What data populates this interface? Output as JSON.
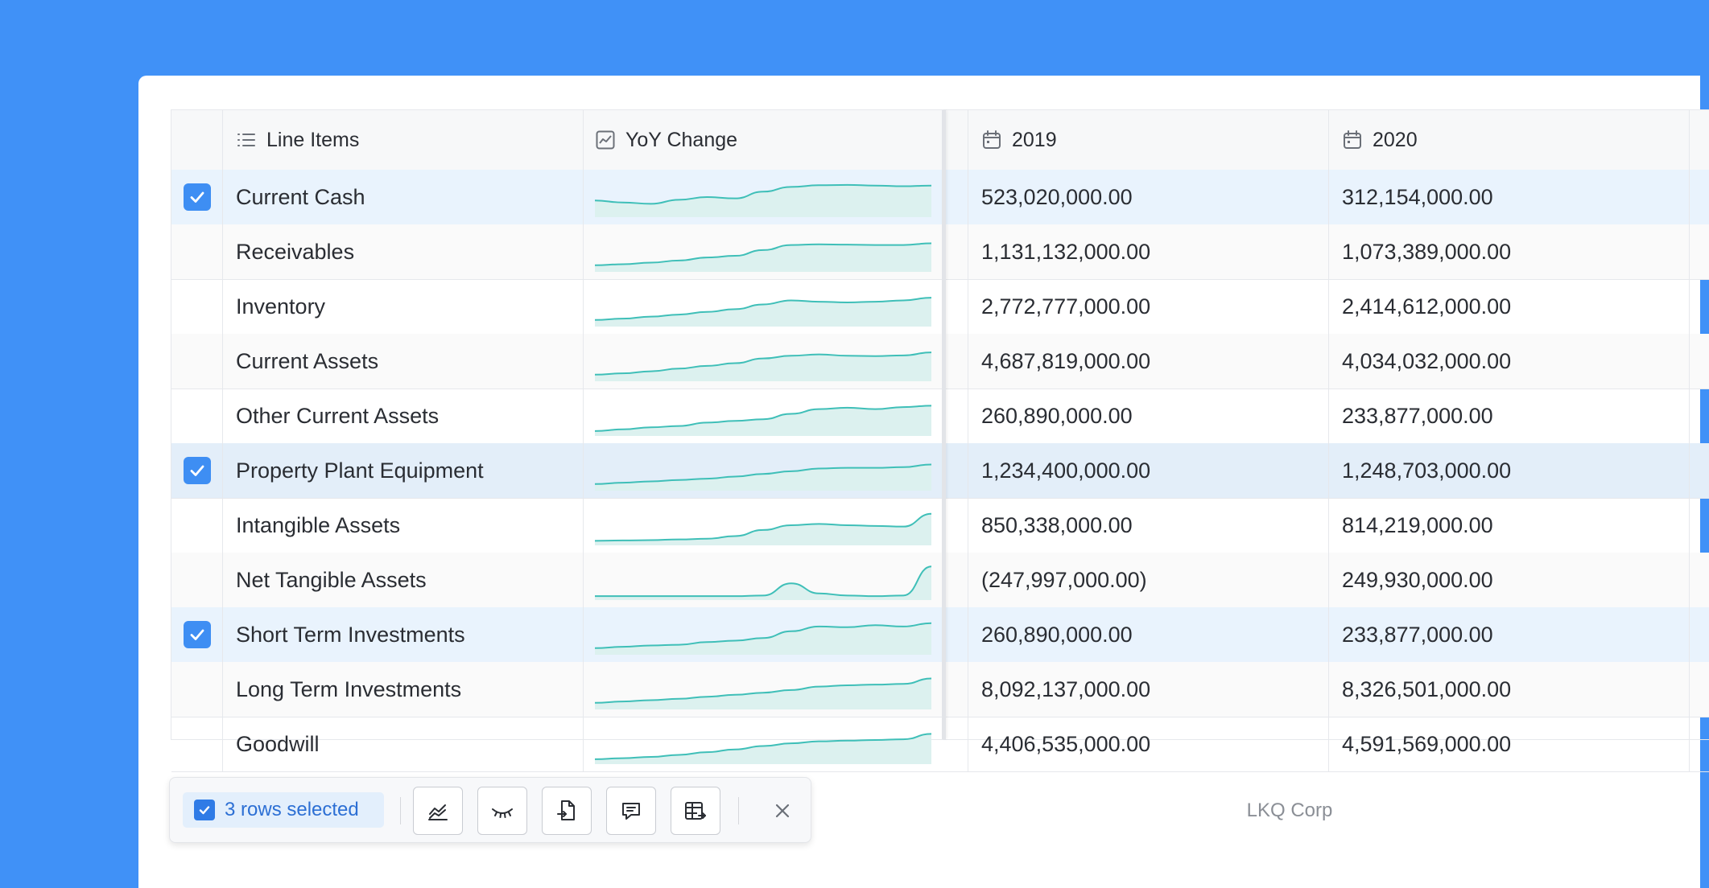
{
  "columns": {
    "line_items": "Line Items",
    "yoy_change": "YoY Change",
    "y2019": "2019",
    "y2020": "2020"
  },
  "rows": [
    {
      "name": "Current Cash",
      "v2019": "523,020,000.00",
      "v2020": "312,154,000.00",
      "selected": true
    },
    {
      "name": "Receivables",
      "v2019": "1,131,132,000.00",
      "v2020": "1,073,389,000.00",
      "selected": false
    },
    {
      "name": "Inventory",
      "v2019": "2,772,777,000.00",
      "v2020": "2,414,612,000.00",
      "selected": false
    },
    {
      "name": "Current Assets",
      "v2019": "4,687,819,000.00",
      "v2020": "4,034,032,000.00",
      "selected": false
    },
    {
      "name": "Other Current Assets",
      "v2019": "260,890,000.00",
      "v2020": "233,877,000.00",
      "selected": false
    },
    {
      "name": "Property Plant Equipment",
      "v2019": "1,234,400,000.00",
      "v2020": "1,248,703,000.00",
      "selected": true
    },
    {
      "name": "Intangible Assets",
      "v2019": "850,338,000.00",
      "v2020": "814,219,000.00",
      "selected": false
    },
    {
      "name": "Net Tangible Assets",
      "v2019": "(247,997,000.00)",
      "v2020": "249,930,000.00",
      "selected": false
    },
    {
      "name": "Short Term Investments",
      "v2019": "260,890,000.00",
      "v2020": "233,877,000.00",
      "selected": true
    },
    {
      "name": "Long Term Investments",
      "v2019": "8,092,137,000.00",
      "v2020": "8,326,501,000.00",
      "selected": false
    },
    {
      "name": "Goodwill",
      "v2019": "4,406,535,000.00",
      "v2020": "4,591,569,000.00",
      "selected": false
    }
  ],
  "sparklines": [
    [
      0.4,
      0.34,
      0.3,
      0.42,
      0.5,
      0.46,
      0.66,
      0.8,
      0.85,
      0.86,
      0.84,
      0.82,
      0.84
    ],
    [
      0.1,
      0.13,
      0.18,
      0.24,
      0.33,
      0.38,
      0.55,
      0.7,
      0.72,
      0.71,
      0.7,
      0.7,
      0.75
    ],
    [
      0.1,
      0.14,
      0.2,
      0.26,
      0.34,
      0.42,
      0.56,
      0.68,
      0.64,
      0.62,
      0.64,
      0.68,
      0.76
    ],
    [
      0.1,
      0.14,
      0.2,
      0.28,
      0.36,
      0.44,
      0.58,
      0.66,
      0.7,
      0.66,
      0.65,
      0.67,
      0.76
    ],
    [
      0.05,
      0.1,
      0.16,
      0.2,
      0.3,
      0.35,
      0.4,
      0.56,
      0.7,
      0.74,
      0.7,
      0.76,
      0.8
    ],
    [
      0.1,
      0.14,
      0.18,
      0.22,
      0.26,
      0.32,
      0.4,
      0.48,
      0.56,
      0.58,
      0.58,
      0.6,
      0.68
    ],
    [
      0.04,
      0.05,
      0.06,
      0.08,
      0.1,
      0.18,
      0.36,
      0.5,
      0.54,
      0.5,
      0.48,
      0.46,
      0.84
    ],
    [
      0.02,
      0.02,
      0.02,
      0.02,
      0.02,
      0.02,
      0.04,
      0.4,
      0.1,
      0.04,
      0.02,
      0.04,
      0.9
    ],
    [
      0.1,
      0.14,
      0.18,
      0.2,
      0.28,
      0.32,
      0.4,
      0.6,
      0.74,
      0.72,
      0.78,
      0.74,
      0.84
    ],
    [
      0.1,
      0.14,
      0.18,
      0.22,
      0.28,
      0.34,
      0.4,
      0.48,
      0.58,
      0.62,
      0.64,
      0.66,
      0.82
    ],
    [
      0.05,
      0.08,
      0.12,
      0.18,
      0.26,
      0.34,
      0.44,
      0.52,
      0.58,
      0.6,
      0.62,
      0.64,
      0.8
    ]
  ],
  "toolbar": {
    "selected_label": "3 rows selected",
    "icons": [
      "chart-icon",
      "hide-icon",
      "export-icon",
      "comment-icon",
      "table-icon",
      "close-icon"
    ]
  },
  "footer": {
    "company": "LKQ Corp"
  },
  "colors": {
    "background": "#4091f7",
    "accent": "#3e8ef3",
    "spark_line": "#3fbfb8",
    "spark_fill": "#dcf1ef"
  }
}
